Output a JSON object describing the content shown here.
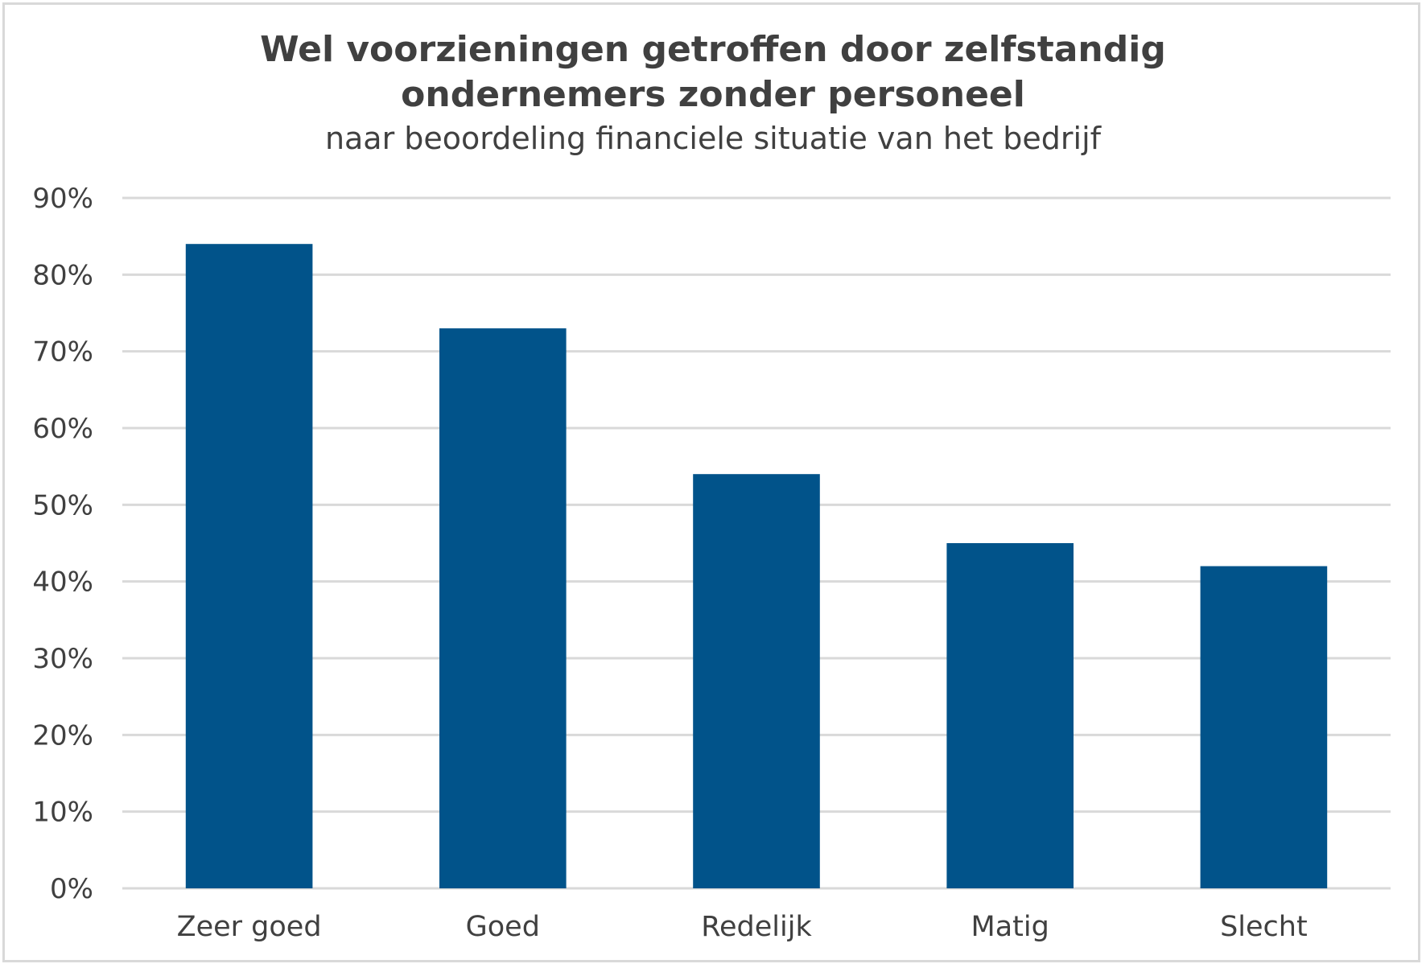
{
  "chart_data": {
    "type": "bar",
    "title_lines": [
      "Wel voorzieningen getroffen door zelfstandig",
      "ondernemers zonder personeel"
    ],
    "subtitle": "naar beoordeling financiele situatie van het bedrijf",
    "categories": [
      "Zeer goed",
      "Goed",
      "Redelijk",
      "Matig",
      "Slecht"
    ],
    "values": [
      0.84,
      0.73,
      0.54,
      0.45,
      0.42
    ],
    "ylim": [
      0,
      0.9
    ],
    "yticks": [
      0,
      0.1,
      0.2,
      0.3,
      0.4,
      0.5,
      0.6,
      0.7,
      0.8,
      0.9
    ],
    "ytick_labels": [
      "0%",
      "10%",
      "20%",
      "30%",
      "40%",
      "50%",
      "60%",
      "70%",
      "80%",
      "90%"
    ],
    "xlabel": "",
    "ylabel": "",
    "grid": true,
    "legend": "none",
    "colors": {
      "bar": "#01538a",
      "grid": "#d9d9d9",
      "text": "#404040",
      "border": "#d9d9d9"
    }
  }
}
